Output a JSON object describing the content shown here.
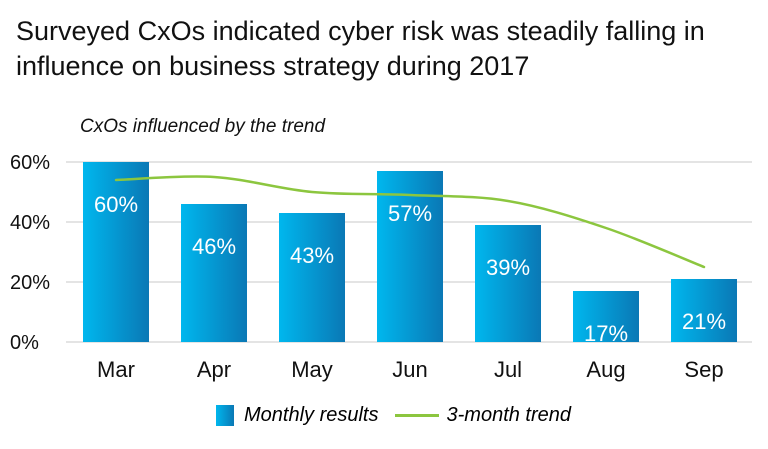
{
  "title": "Surveyed CxOs indicated cyber risk was steadily falling in influence on business strategy during 2017",
  "subtitle": "CxOs influenced by the trend",
  "legend": {
    "bars": "Monthly results",
    "line": "3-month trend"
  },
  "colors": {
    "bar_light": "#00b7ee",
    "bar_dark": "#0a78b5",
    "trend": "#8cc63f",
    "grid": "#c8c8c8"
  },
  "chart_data": {
    "type": "bar",
    "categories": [
      "Mar",
      "Apr",
      "May",
      "Jun",
      "Jul",
      "Aug",
      "Sep"
    ],
    "series": [
      {
        "name": "Monthly results",
        "values": [
          60,
          46,
          43,
          57,
          39,
          17,
          21
        ],
        "labels": [
          "60%",
          "46%",
          "43%",
          "57%",
          "39%",
          "17%",
          "21%"
        ]
      },
      {
        "name": "3-month trend",
        "type": "line",
        "values": [
          54,
          55,
          50,
          49,
          47,
          38,
          25
        ]
      }
    ],
    "y_ticks": [
      "0%",
      "20%",
      "40%",
      "60%"
    ],
    "ylim": [
      0,
      60
    ],
    "grid": true,
    "legend_position": "bottom"
  }
}
